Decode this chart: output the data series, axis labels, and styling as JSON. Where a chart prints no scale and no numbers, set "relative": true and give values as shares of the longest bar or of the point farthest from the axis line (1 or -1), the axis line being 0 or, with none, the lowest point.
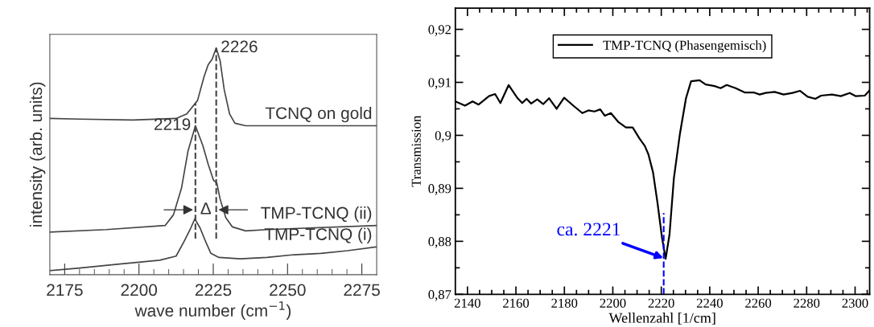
{
  "chart_data": [
    {
      "type": "line",
      "relative": true,
      "xlabel": "wave number (cm$^{−1}$)",
      "ylabel": "intensity (arb. units)",
      "xlim": [
        2170,
        2280
      ],
      "xticks": [
        2175,
        {
          "value": 2180,
          "label": null
        },
        {
          "value": 2185,
          "label": null
        },
        {
          "value": 2190,
          "label": null
        },
        {
          "value": 2195,
          "label": null
        },
        2200,
        {
          "value": 2205,
          "label": null
        },
        {
          "value": 2210,
          "label": null
        },
        {
          "value": 2215,
          "label": null
        },
        {
          "value": 2220,
          "label": null
        },
        2225,
        {
          "value": 2230,
          "label": null
        },
        {
          "value": 2235,
          "label": null
        },
        {
          "value": 2240,
          "label": null
        },
        {
          "value": 2245,
          "label": null
        },
        2250,
        {
          "value": 2255,
          "label": null
        },
        {
          "value": 2260,
          "label": null
        },
        {
          "value": 2265,
          "label": null
        },
        {
          "value": 2270,
          "label": null
        },
        2275
      ],
      "series": [
        {
          "name": "TCNQ on gold",
          "color": "#444444",
          "x": [
            2170,
            2180,
            2198,
            2212.5,
            2216.1,
            2219.7,
            2221.9,
            2223.3,
            2224.6,
            2226,
            2227.3,
            2228.7,
            2230.5,
            2232.3,
            2235.9,
            2243.1,
            2280
          ],
          "values": [
            0.689,
            0.686,
            0.682,
            0.689,
            0.709,
            0.768,
            0.873,
            0.926,
            0.95,
            1.0,
            0.944,
            0.815,
            0.709,
            0.668,
            0.657,
            0.657,
            0.657
          ]
        },
        {
          "name": "TMP-TCNQ (ii)",
          "color": "#444444",
          "x": [
            2170,
            2189,
            2208.8,
            2211.6,
            2214.3,
            2216.5,
            2219,
            2221.5,
            2223.3,
            2225.1,
            2226.2,
            2227.3,
            2229.2,
            2231.4,
            2235.9,
            2243.1,
            2280
          ],
          "values": [
            0.188,
            0.199,
            0.217,
            0.264,
            0.381,
            0.545,
            0.657,
            0.569,
            0.487,
            0.416,
            0.404,
            0.334,
            0.252,
            0.211,
            0.193,
            0.199,
            0.217
          ]
        },
        {
          "name": "TMP-TCNQ (i)",
          "color": "#444444",
          "x": [
            2170,
            2180,
            2193.5,
            2207,
            2212.5,
            2215.2,
            2217.4,
            2218.8,
            2220.6,
            2222.4,
            2224.2,
            2226.9,
            2234.1,
            2243.1,
            2252.2,
            2261.2,
            2270.2,
            2280
          ],
          "values": [
            0.018,
            0.029,
            0.047,
            0.064,
            0.082,
            0.147,
            0.205,
            0.246,
            0.205,
            0.147,
            0.094,
            0.076,
            0.07,
            0.076,
            0.088,
            0.094,
            0.106,
            0.123
          ]
        }
      ],
      "ref_lines": [
        {
          "axis": "x",
          "value": 2219,
          "color": "#444444",
          "line_style": "dashed"
        },
        {
          "axis": "x",
          "value": 2226,
          "color": "#444444",
          "line_style": "dashed"
        }
      ],
      "annotations": [
        {
          "text": "2226",
          "x": 2226,
          "y": 1.0
        },
        {
          "text": "2219",
          "x": 2219,
          "y": 0.657
        },
        "Δ"
      ]
    },
    {
      "type": "line",
      "xlabel": "Wellenzahl [1/cm]",
      "ylabel": "Transmission",
      "xlim": [
        2135,
        2306
      ],
      "ylim": [
        0.87,
        0.924
      ],
      "legend": "top",
      "grid": false,
      "xticks": [
        2140,
        {
          "value": 2145,
          "label": null
        },
        {
          "value": 2150,
          "label": null
        },
        {
          "value": 2155,
          "label": null
        },
        2160,
        {
          "value": 2165,
          "label": null
        },
        {
          "value": 2170,
          "label": null
        },
        {
          "value": 2175,
          "label": null
        },
        2180,
        {
          "value": 2185,
          "label": null
        },
        {
          "value": 2190,
          "label": null
        },
        {
          "value": 2195,
          "label": null
        },
        2200,
        {
          "value": 2205,
          "label": null
        },
        {
          "value": 2210,
          "label": null
        },
        {
          "value": 2215,
          "label": null
        },
        2220,
        {
          "value": 2225,
          "label": null
        },
        {
          "value": 2230,
          "label": null
        },
        {
          "value": 2235,
          "label": null
        },
        2240,
        {
          "value": 2245,
          "label": null
        },
        {
          "value": 2250,
          "label": null
        },
        {
          "value": 2255,
          "label": null
        },
        2260,
        {
          "value": 2265,
          "label": null
        },
        {
          "value": 2270,
          "label": null
        },
        {
          "value": 2275,
          "label": null
        },
        2280,
        {
          "value": 2285,
          "label": null
        },
        {
          "value": 2290,
          "label": null
        },
        {
          "value": 2295,
          "label": null
        },
        2300,
        {
          "value": 2305,
          "label": null
        }
      ],
      "yticks": [
        {
          "value": 0.87,
          "label": "0,87"
        },
        {
          "value": 0.875,
          "label": null
        },
        {
          "value": 0.88,
          "label": "0,88"
        },
        {
          "value": 0.885,
          "label": null
        },
        {
          "value": 0.89,
          "label": "0,89"
        },
        {
          "value": 0.895,
          "label": null
        },
        {
          "value": 0.9,
          "label": "0,9"
        },
        {
          "value": 0.905,
          "label": null
        },
        {
          "value": 0.91,
          "label": "0,91"
        },
        {
          "value": 0.915,
          "label": null
        },
        {
          "value": 0.92,
          "label": "0,92"
        }
      ],
      "series": [
        {
          "name": "TMP-TCNQ (Phasengemisch)",
          "color": "#000000",
          "x": [
            2135,
            2139,
            2142.1,
            2144.6,
            2148.9,
            2151.4,
            2153.6,
            2157,
            2160.7,
            2162.6,
            2164.4,
            2166.3,
            2168.8,
            2171.3,
            2173.7,
            2176.8,
            2179.9,
            2183.7,
            2187.4,
            2189.9,
            2192.4,
            2194.8,
            2196.7,
            2199.2,
            2202.3,
            2205.4,
            2208.2,
            2211,
            2213.2,
            2214.7,
            2216.6,
            2218.4,
            2220.3,
            2221.8,
            2223.4,
            2225.2,
            2227.7,
            2230.2,
            2232.3,
            2235.8,
            2238.3,
            2242,
            2244.5,
            2247,
            2250.7,
            2254.4,
            2258.1,
            2260.6,
            2263.1,
            2266.8,
            2270.5,
            2274.2,
            2277.3,
            2280.4,
            2283.6,
            2286,
            2290.4,
            2294.1,
            2297.8,
            2300.3,
            2304,
            2305.8
          ],
          "values": [
            0.9064,
            0.9056,
            0.9064,
            0.9058,
            0.9074,
            0.9078,
            0.9061,
            0.9095,
            0.907,
            0.9061,
            0.9069,
            0.906,
            0.9068,
            0.9059,
            0.907,
            0.905,
            0.9071,
            0.9056,
            0.9042,
            0.9047,
            0.9045,
            0.9049,
            0.9037,
            0.9042,
            0.9025,
            0.9015,
            0.9015,
            0.8994,
            0.898,
            0.8964,
            0.893,
            0.8874,
            0.8807,
            0.8767,
            0.8813,
            0.8919,
            0.9003,
            0.907,
            0.9102,
            0.9104,
            0.9096,
            0.9093,
            0.9089,
            0.9095,
            0.9089,
            0.9081,
            0.9081,
            0.9077,
            0.908,
            0.9082,
            0.9077,
            0.908,
            0.9084,
            0.9073,
            0.9069,
            0.9075,
            0.9077,
            0.9074,
            0.908,
            0.9074,
            0.9075,
            0.9084
          ]
        }
      ],
      "ref_lines": [
        {
          "axis": "x",
          "value": 2221,
          "color": "#0000ff",
          "line_style": "dashed"
        }
      ],
      "annotations": [
        {
          "text": "ca. 2221",
          "x": 2221.8,
          "y": 0.8767
        }
      ]
    }
  ]
}
